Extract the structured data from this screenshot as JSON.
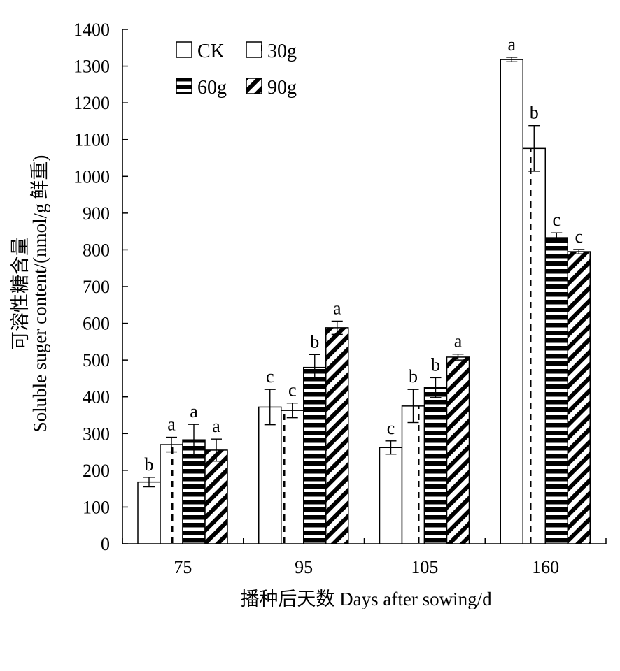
{
  "chart_data": {
    "type": "bar",
    "title": "",
    "xlabel": "播种后天数 Days after sowing/d",
    "ylabel_cn": "可溶性糖含量",
    "ylabel_en": "Soluble suger content/(nmol/g 鲜重)",
    "categories": [
      "75",
      "95",
      "105",
      "160"
    ],
    "ylim": [
      0,
      1400
    ],
    "yticks": [
      0,
      100,
      200,
      300,
      400,
      500,
      600,
      700,
      800,
      900,
      1000,
      1100,
      1200,
      1300,
      1400
    ],
    "legend_position": "top-left",
    "series": [
      {
        "name": "CK",
        "pattern": "empty",
        "values": [
          168,
          372,
          262,
          1318
        ],
        "errors": [
          13,
          48,
          18,
          6
        ],
        "letters": [
          "b",
          "c",
          "c",
          "a"
        ]
      },
      {
        "name": "30g",
        "pattern": "dashed",
        "values": [
          270,
          363,
          375,
          1076
        ],
        "errors": [
          20,
          20,
          45,
          62
        ],
        "letters": [
          "a",
          "c",
          "b",
          "b"
        ]
      },
      {
        "name": "60g",
        "pattern": "horizontal",
        "values": [
          283,
          480,
          425,
          833
        ],
        "errors": [
          42,
          35,
          27,
          13
        ],
        "letters": [
          "a",
          "b",
          "b",
          "c"
        ]
      },
      {
        "name": "90g",
        "pattern": "diagonal",
        "values": [
          255,
          588,
          508,
          795
        ],
        "errors": [
          30,
          18,
          8,
          6
        ],
        "letters": [
          "a",
          "a",
          "a",
          "c"
        ]
      }
    ]
  }
}
